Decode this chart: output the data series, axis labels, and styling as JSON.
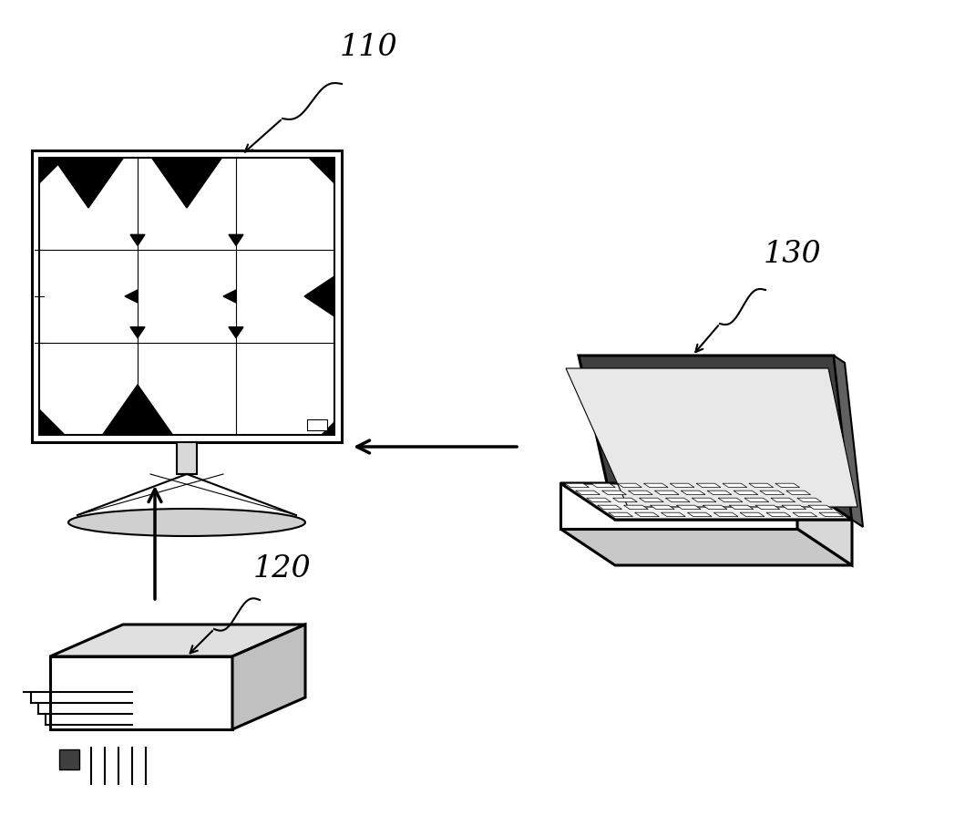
{
  "background_color": "#ffffff",
  "label_110": "110",
  "label_120": "120",
  "label_130": "130",
  "text_color": "#000000",
  "line_color": "#000000",
  "label_fontsize": 24,
  "lw_thick": 2.2,
  "lw_medium": 1.5,
  "lw_thin": 0.8,
  "gray_light": "#e8e8e8",
  "gray_mid": "#c8c8c8",
  "gray_dark": "#888888"
}
